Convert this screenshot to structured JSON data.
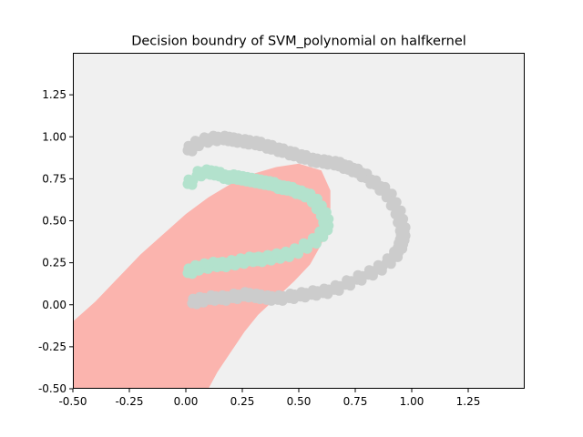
{
  "chart_data": {
    "type": "scatter",
    "title": "Decision boundry of SVM_polynomial on halfkernel",
    "xlabel": "",
    "ylabel": "",
    "xlim": [
      -0.5,
      1.5
    ],
    "ylim": [
      -0.5,
      1.5
    ],
    "x_ticks": [
      "-0.50",
      "-0.25",
      "0.00",
      "0.25",
      "0.50",
      "0.75",
      "1.00",
      "1.25"
    ],
    "x_tick_values": [
      -0.5,
      -0.25,
      0.0,
      0.25,
      0.5,
      0.75,
      1.0,
      1.25
    ],
    "y_ticks": [
      "-0.50",
      "-0.25",
      "0.00",
      "0.25",
      "0.50",
      "0.75",
      "1.00",
      "1.25"
    ],
    "y_tick_values": [
      -0.5,
      -0.25,
      0.0,
      0.25,
      0.5,
      0.75,
      1.0,
      1.25
    ],
    "grid": false,
    "legend": "none",
    "colors": {
      "background_region": "#f0f0f0",
      "decision_region": "#fbb4ae",
      "class_outer": "#cccccc",
      "class_inner": "#b3e2cd"
    },
    "decision_region_polygon": [
      [
        -0.5,
        -0.1
      ],
      [
        -0.4,
        0.02
      ],
      [
        -0.3,
        0.16
      ],
      [
        -0.2,
        0.3
      ],
      [
        -0.1,
        0.42
      ],
      [
        0.0,
        0.54
      ],
      [
        0.1,
        0.64
      ],
      [
        0.2,
        0.72
      ],
      [
        0.3,
        0.78
      ],
      [
        0.4,
        0.82
      ],
      [
        0.5,
        0.84
      ],
      [
        0.6,
        0.8
      ],
      [
        0.64,
        0.68
      ],
      [
        0.64,
        0.5
      ],
      [
        0.6,
        0.36
      ],
      [
        0.55,
        0.24
      ],
      [
        0.48,
        0.14
      ],
      [
        0.4,
        0.04
      ],
      [
        0.32,
        -0.06
      ],
      [
        0.26,
        -0.16
      ],
      [
        0.2,
        -0.28
      ],
      [
        0.14,
        -0.4
      ],
      [
        0.1,
        -0.5
      ],
      [
        -0.5,
        -0.5
      ]
    ],
    "series": [
      {
        "class": "outer",
        "x": [
          0.02,
          0.05,
          0.09,
          0.13,
          0.18,
          0.22,
          0.27,
          0.32,
          0.37,
          0.42,
          0.47,
          0.52,
          0.57,
          0.62,
          0.67,
          0.71,
          0.75,
          0.79,
          0.83,
          0.87,
          0.9,
          0.92,
          0.94,
          0.95,
          0.96,
          0.96,
          0.95,
          0.93,
          0.9,
          0.86,
          0.82,
          0.77,
          0.72,
          0.67,
          0.62,
          0.57,
          0.52,
          0.47,
          0.42,
          0.37,
          0.32,
          0.27,
          0.22,
          0.17,
          0.12,
          0.07,
          0.04
        ],
        "y": [
          0.93,
          0.96,
          0.98,
          0.99,
          0.99,
          0.98,
          0.97,
          0.96,
          0.94,
          0.92,
          0.9,
          0.88,
          0.86,
          0.85,
          0.84,
          0.82,
          0.8,
          0.77,
          0.73,
          0.69,
          0.65,
          0.6,
          0.55,
          0.5,
          0.45,
          0.4,
          0.35,
          0.3,
          0.26,
          0.22,
          0.19,
          0.16,
          0.13,
          0.1,
          0.08,
          0.07,
          0.06,
          0.05,
          0.04,
          0.04,
          0.05,
          0.06,
          0.05,
          0.04,
          0.04,
          0.03,
          0.02
        ]
      },
      {
        "class": "inner",
        "x": [
          0.02,
          0.06,
          0.1,
          0.14,
          0.18,
          0.22,
          0.26,
          0.3,
          0.34,
          0.38,
          0.42,
          0.46,
          0.5,
          0.54,
          0.57,
          0.59,
          0.61,
          0.62,
          0.62,
          0.6,
          0.57,
          0.53,
          0.49,
          0.45,
          0.41,
          0.37,
          0.33,
          0.29,
          0.25,
          0.21,
          0.17,
          0.13,
          0.09,
          0.05,
          0.02
        ],
        "y": [
          0.73,
          0.78,
          0.79,
          0.78,
          0.76,
          0.76,
          0.75,
          0.74,
          0.73,
          0.72,
          0.7,
          0.69,
          0.67,
          0.65,
          0.62,
          0.58,
          0.54,
          0.5,
          0.46,
          0.42,
          0.38,
          0.35,
          0.32,
          0.3,
          0.29,
          0.28,
          0.27,
          0.27,
          0.26,
          0.25,
          0.24,
          0.24,
          0.23,
          0.22,
          0.2
        ]
      }
    ]
  }
}
